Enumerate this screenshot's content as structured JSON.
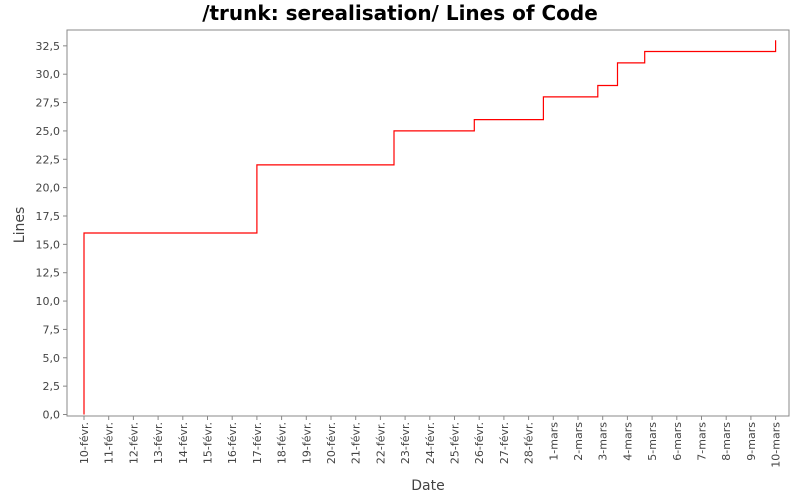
{
  "chart_data": {
    "type": "line",
    "title": "/trunk: serealisation/ Lines of Code",
    "xlabel": "Date",
    "ylabel": "Lines",
    "ylim": [
      0,
      33.5
    ],
    "y_ticks": [
      "0,0",
      "2,5",
      "5,0",
      "7,5",
      "10,0",
      "12,5",
      "15,0",
      "17,5",
      "20,0",
      "22,5",
      "25,0",
      "27,5",
      "30,0",
      "32,5"
    ],
    "x_ticks": [
      "10-févr.",
      "11-févr.",
      "12-févr.",
      "13-févr.",
      "14-févr.",
      "15-févr.",
      "16-févr.",
      "17-févr.",
      "18-févr.",
      "19-févr.",
      "20-févr.",
      "21-févr.",
      "22-févr.",
      "23-févr.",
      "24-févr.",
      "25-févr.",
      "26-févr.",
      "27-févr.",
      "28-févr.",
      "1-mars",
      "2-mars",
      "3-mars",
      "4-mars",
      "5-mars",
      "6-mars",
      "7-mars",
      "8-mars",
      "9-mars",
      "10-mars"
    ],
    "line_color": "#ff0000",
    "step": true,
    "grid": false,
    "series": [
      {
        "x": [
          0,
          0,
          7,
          7,
          12.55,
          12.55,
          15.8,
          15.8,
          18.6,
          18.6,
          20.8,
          20.8,
          21.6,
          21.6,
          22.7,
          22.7,
          28,
          28
        ],
        "y": [
          0,
          16,
          16,
          22,
          22,
          25,
          25,
          26,
          26,
          28,
          28,
          29,
          29,
          31,
          31,
          32,
          32,
          33
        ]
      }
    ]
  }
}
